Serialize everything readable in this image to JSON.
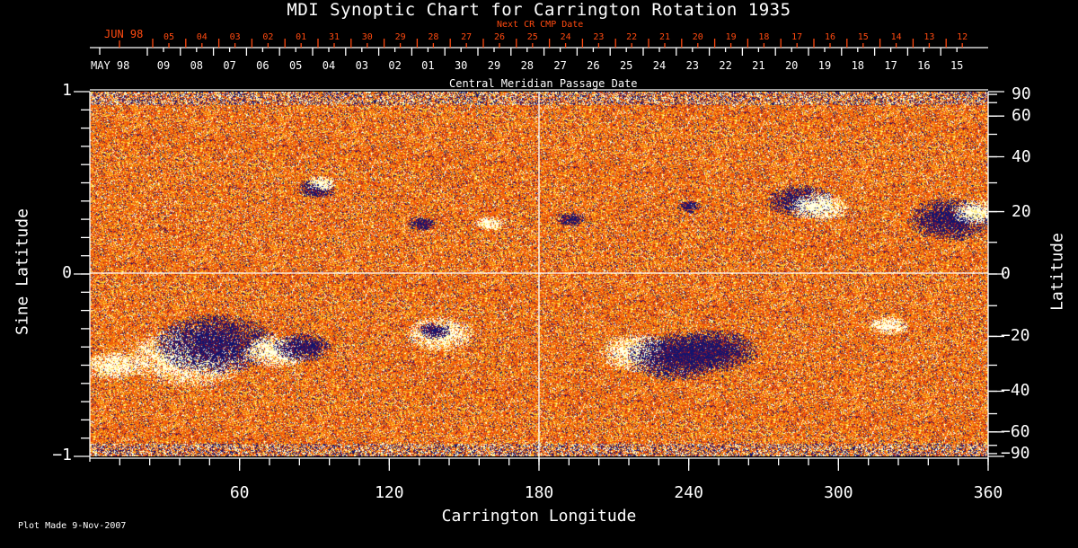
{
  "chart_data": {
    "type": "heatmap",
    "title": "MDI Synoptic Chart for Carrington Rotation 1935",
    "xlabel": "Carrington Longitude",
    "ylabel_left": "Sine Latitude",
    "ylabel_right": "Latitude",
    "xlim": [
      0,
      360
    ],
    "ylim_sine": [
      -1,
      1
    ],
    "x_ticks": [
      "60",
      "120",
      "180",
      "240",
      "300",
      "360"
    ],
    "y_ticks_left": [
      "1",
      "0",
      "−1"
    ],
    "y_ticks_right": [
      {
        "label": "90",
        "lat": 90
      },
      {
        "label": "60",
        "lat": 60
      },
      {
        "label": "40",
        "lat": 40
      },
      {
        "label": "20",
        "lat": 20
      },
      {
        "label": "0",
        "lat": 0
      },
      {
        "label": "−20",
        "lat": -20
      },
      {
        "label": "−40",
        "lat": -40
      },
      {
        "label": "−60",
        "lat": -60
      },
      {
        "label": "−90",
        "lat": -90
      }
    ],
    "top_axis_cmp": {
      "label": "Central Meridian Passage Date",
      "month_label": "MAY 98",
      "dates": [
        "09",
        "08",
        "07",
        "06",
        "05",
        "04",
        "03",
        "02",
        "01",
        "30",
        "29",
        "28",
        "27",
        "26",
        "25",
        "24",
        "23",
        "22",
        "21",
        "20",
        "19",
        "18",
        "17",
        "16",
        "15"
      ]
    },
    "top_axis_next_cr": {
      "label": "Next CR CMP Date",
      "month_label": "JUN 98",
      "dates": [
        "05",
        "04",
        "03",
        "02",
        "01",
        "31",
        "30",
        "29",
        "28",
        "27",
        "26",
        "25",
        "24",
        "23",
        "22",
        "21",
        "20",
        "19",
        "18",
        "17",
        "16",
        "15",
        "14",
        "13",
        "12"
      ]
    },
    "colors": {
      "next_cr_axis": "#ff4a10",
      "axis": "#ffffff",
      "positive_field": "#ffffff",
      "negative_field": "#1a1a80",
      "background_field": "#ff5a10"
    },
    "grid": false
  },
  "footer": {
    "plot_made": "Plot Made  9-Nov-2007"
  }
}
